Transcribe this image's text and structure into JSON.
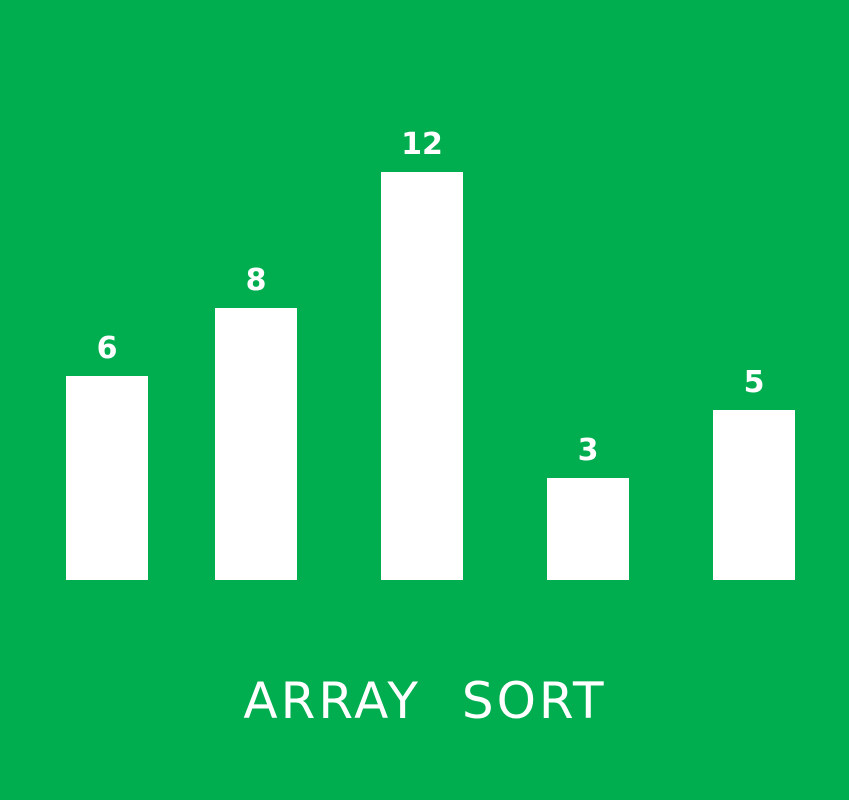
{
  "chart_data": {
    "type": "bar",
    "title": "ARRAY SORT",
    "values": [
      6,
      8,
      12,
      3,
      5
    ],
    "color": "#ffffff"
  }
}
